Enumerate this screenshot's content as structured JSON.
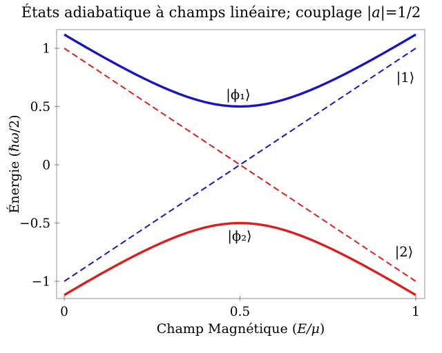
{
  "title_parts": [
    "États adiabatique à champs linéaire; couplage |",
    "a",
    "|=1/2"
  ],
  "axes": {
    "xlabel_parts": [
      "Champ Magnétique (",
      "E/μ",
      ")"
    ],
    "ylabel_parts": [
      "Énergie (",
      "ℏω",
      "/2)"
    ],
    "frame_color": "#b0b0b3",
    "tick_color": "#8a8a8a"
  },
  "chart_data": {
    "type": "line",
    "title": "États adiabatique à champs linéaire; couplage |a|=1/2",
    "xlabel": "Champ Magnétique (E/μ)",
    "ylabel": "Énergie (ℏω/2)",
    "xlim": [
      0,
      1
    ],
    "ylim": [
      -1.16,
      1.16
    ],
    "grid": false,
    "legend_position": "none",
    "x_ticks": {
      "values": [
        0,
        0.5,
        1
      ],
      "labels": [
        "0",
        "0.5",
        "1"
      ]
    },
    "y_ticks": {
      "values": [
        1,
        0.5,
        0,
        -0.5,
        -1
      ],
      "labels": [
        "1",
        "0.5",
        "0",
        "−0.5",
        "−1"
      ]
    },
    "x": [
      0,
      0.025,
      0.05,
      0.075,
      0.1,
      0.125,
      0.15,
      0.175,
      0.2,
      0.225,
      0.25,
      0.275,
      0.3,
      0.325,
      0.35,
      0.375,
      0.4,
      0.425,
      0.45,
      0.475,
      0.5,
      0.525,
      0.55,
      0.575,
      0.6,
      0.625,
      0.65,
      0.675,
      0.7,
      0.725,
      0.75,
      0.775,
      0.8,
      0.825,
      0.85,
      0.875,
      0.9,
      0.925,
      0.95,
      0.975,
      1
    ],
    "series": [
      {
        "name": "adiabatic-upper-phi1",
        "label": "|ϕ₁⟩",
        "color": "#1515c4",
        "style": "solid",
        "width": 3.4,
        "y": [
          1.118,
          1.0735,
          1.0296,
          0.9862,
          0.9434,
          0.9014,
          0.8602,
          0.8201,
          0.781,
          0.7433,
          0.7071,
          0.6727,
          0.6403,
          0.6103,
          0.5831,
          0.559,
          0.5385,
          0.522,
          0.5099,
          0.5025,
          0.5,
          0.5025,
          0.5099,
          0.522,
          0.5385,
          0.559,
          0.5831,
          0.6103,
          0.6403,
          0.6727,
          0.7071,
          0.7433,
          0.781,
          0.8201,
          0.8602,
          0.9014,
          0.9434,
          0.9862,
          1.0296,
          1.0735,
          1.118
        ]
      },
      {
        "name": "adiabatic-lower-phi2",
        "label": "|ϕ₂⟩",
        "color": "#dd1c1c",
        "style": "solid",
        "width": 3.4,
        "y": [
          -1.118,
          -1.0735,
          -1.0296,
          -0.9862,
          -0.9434,
          -0.9014,
          -0.8602,
          -0.8201,
          -0.781,
          -0.7433,
          -0.7071,
          -0.6727,
          -0.6403,
          -0.6103,
          -0.5831,
          -0.559,
          -0.5385,
          -0.522,
          -0.5099,
          -0.5025,
          -0.5,
          -0.5025,
          -0.5099,
          -0.522,
          -0.5385,
          -0.559,
          -0.5831,
          -0.6103,
          -0.6403,
          -0.6727,
          -0.7071,
          -0.7433,
          -0.781,
          -0.8201,
          -0.8602,
          -0.9014,
          -0.9434,
          -0.9862,
          -1.0296,
          -1.0735,
          -1.118
        ]
      },
      {
        "name": "diabatic-state-1",
        "label": "|1⟩",
        "color": "#1515c4",
        "style": "dashed",
        "width": 2,
        "x": [
          0,
          1
        ],
        "y": [
          -1,
          1
        ]
      },
      {
        "name": "diabatic-state-2",
        "label": "|2⟩",
        "color": "#dd1c1c",
        "style": "dashed",
        "width": 2,
        "x": [
          0,
          1
        ],
        "y": [
          1,
          -1
        ]
      }
    ],
    "annotations": [
      {
        "text": "|ϕ₁⟩",
        "x": 0.495,
        "y": 0.604
      },
      {
        "text": "|ϕ₂⟩",
        "x": 0.499,
        "y": -0.61
      },
      {
        "text": "|1⟩",
        "x": 0.9705,
        "y": 0.7515
      },
      {
        "text": "|2⟩",
        "x": 0.9666,
        "y": -0.7456
      }
    ]
  }
}
